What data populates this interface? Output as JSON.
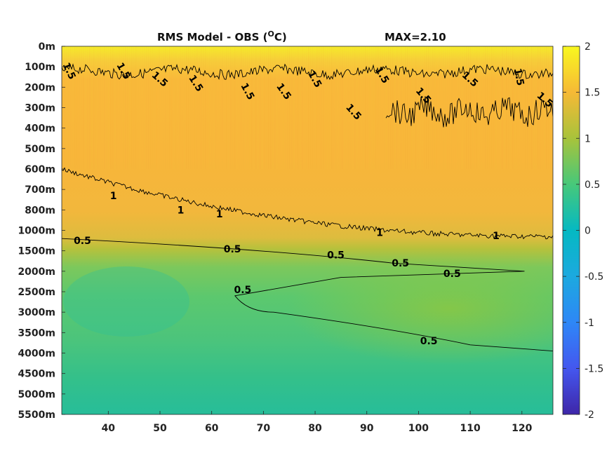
{
  "chart_data": {
    "type": "heatmap",
    "title": {
      "main": "RMS Model - OBS (",
      "sup": "O",
      "unit": "C)",
      "max_label": "MAX=2.10"
    },
    "xlabel": "",
    "ylabel": "",
    "x_ticks": [
      40,
      50,
      60,
      70,
      80,
      90,
      100,
      110,
      120
    ],
    "xlim": [
      31,
      126
    ],
    "depth_ticks": [
      "0m",
      "100m",
      "200m",
      "300m",
      "400m",
      "500m",
      "600m",
      "700m",
      "800m",
      "1000m",
      "1500m",
      "2000m",
      "2500m",
      "3000m",
      "3500m",
      "4000m",
      "4500m",
      "5000m",
      "5500m"
    ],
    "colorbar": {
      "range": [
        -2,
        2
      ],
      "ticks": [
        "2",
        "1.5",
        "1",
        "0.5",
        "0",
        "-0.5",
        "-1",
        "-1.5",
        "-2"
      ],
      "colormap": "parula"
    },
    "depth_profile_rms": {
      "depth_index": [
        0,
        1,
        2,
        3,
        4,
        5,
        6,
        7,
        8,
        9,
        10,
        11,
        12,
        13,
        14,
        15,
        16,
        17,
        18
      ],
      "value_at_x_40": [
        1.9,
        1.5,
        1.35,
        1.3,
        1.25,
        1.2,
        1.1,
        0.95,
        0.85,
        0.75,
        0.5,
        0.42,
        0.38,
        0.36,
        0.35,
        0.34,
        0.33,
        0.32,
        0.3
      ],
      "value_at_x_110": [
        1.9,
        1.55,
        1.45,
        1.42,
        1.45,
        1.3,
        1.25,
        1.2,
        1.15,
        1.08,
        0.75,
        0.62,
        0.6,
        0.62,
        0.6,
        0.5,
        0.42,
        0.38,
        0.35
      ]
    },
    "contours": [
      {
        "level": "1.5",
        "labels": [
          {
            "x": 32.5,
            "d": 1.2
          },
          {
            "x": 43,
            "d": 1.2
          },
          {
            "x": 50,
            "d": 1.6
          },
          {
            "x": 57,
            "d": 1.8
          },
          {
            "x": 67,
            "d": 2.2
          },
          {
            "x": 74,
            "d": 2.2
          },
          {
            "x": 80,
            "d": 1.6
          },
          {
            "x": 87.5,
            "d": 3.2
          },
          {
            "x": 93,
            "d": 1.4
          },
          {
            "x": 101,
            "d": 2.4
          },
          {
            "x": 110,
            "d": 1.6
          },
          {
            "x": 119.5,
            "d": 1.5
          },
          {
            "x": 124.5,
            "d": 2.6
          }
        ]
      },
      {
        "level": "1",
        "labels": [
          {
            "x": 41,
            "d": 7.3
          },
          {
            "x": 54,
            "d": 8.0
          },
          {
            "x": 61.5,
            "d": 8.2
          },
          {
            "x": 92.5,
            "d": 9.1
          },
          {
            "x": 115,
            "d": 9.25
          }
        ]
      },
      {
        "level": "0.5",
        "labels": [
          {
            "x": 35,
            "d": 9.5
          },
          {
            "x": 64,
            "d": 9.9
          },
          {
            "x": 84,
            "d": 10.2
          },
          {
            "x": 96.5,
            "d": 10.6
          },
          {
            "x": 106.5,
            "d": 11.1
          },
          {
            "x": 66,
            "d": 11.9
          },
          {
            "x": 102,
            "d": 14.4
          }
        ]
      }
    ]
  }
}
